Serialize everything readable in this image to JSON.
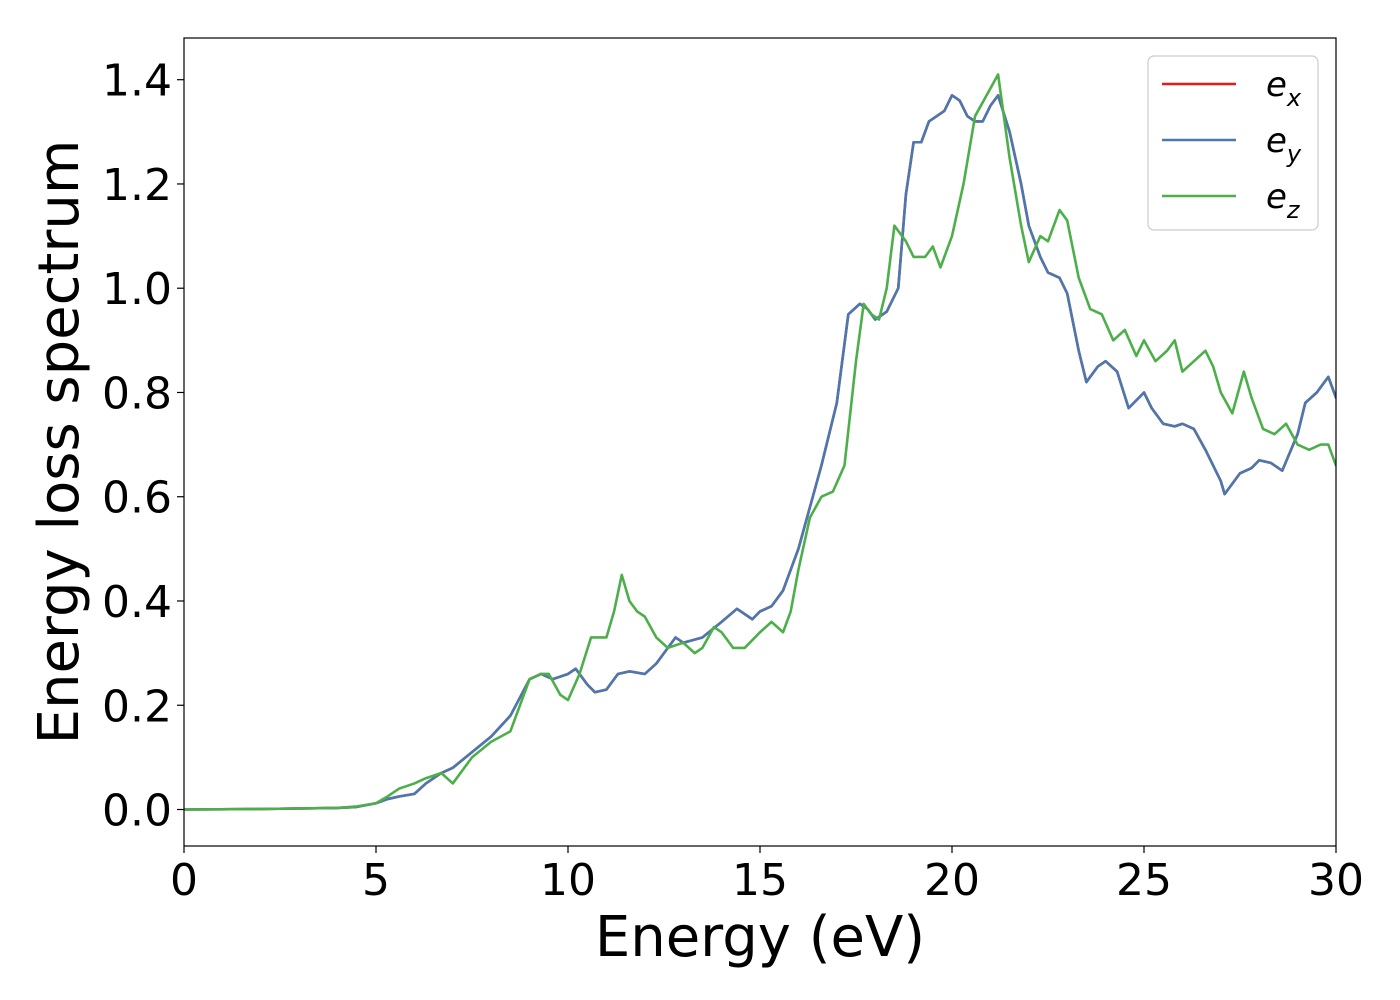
{
  "chart_data": {
    "type": "line",
    "title": "",
    "xlabel": "Energy (eV)",
    "ylabel": "Energy loss spectrum",
    "xlim": [
      0,
      30
    ],
    "ylim": [
      -0.07,
      1.48
    ],
    "xticks": [
      0,
      5,
      10,
      15,
      20,
      25,
      30
    ],
    "xtick_labels": [
      "0",
      "5",
      "10",
      "15",
      "20",
      "25",
      "30"
    ],
    "yticks": [
      0.0,
      0.2,
      0.4,
      0.6,
      0.8,
      1.0,
      1.2,
      1.4
    ],
    "ytick_labels": [
      "0.0",
      "0.2",
      "0.4",
      "0.6",
      "0.8",
      "1.0",
      "1.2",
      "1.4"
    ],
    "grid": false,
    "legend_position": "top-right",
    "series": [
      {
        "name": "e_x",
        "legend_base": "e",
        "legend_sub": "x",
        "color": "#e41a1c",
        "x": [
          0,
          2,
          4,
          4.5,
          5,
          5.3,
          5.6,
          6,
          6.3,
          6.7,
          7,
          7.5,
          8,
          8.5,
          9,
          9.3,
          9.6,
          10,
          10.2,
          10.5,
          10.7,
          11,
          11.3,
          11.6,
          12,
          12.3,
          12.5,
          12.8,
          13,
          13.5,
          14,
          14.4,
          14.8,
          15,
          15.3,
          15.6,
          16,
          16.3,
          16.6,
          17,
          17.3,
          17.6,
          17.8,
          18,
          18.3,
          18.6,
          18.8,
          19,
          19.2,
          19.4,
          19.6,
          19.8,
          20,
          20.2,
          20.4,
          20.6,
          20.8,
          21,
          21.2,
          21.5,
          21.8,
          22,
          22.3,
          22.5,
          22.8,
          23,
          23.3,
          23.5,
          23.8,
          24,
          24.3,
          24.6,
          25,
          25.2,
          25.5,
          25.8,
          26,
          26.3,
          26.6,
          27,
          27.1,
          27.5,
          27.8,
          28,
          28.3,
          28.6,
          29,
          29.2,
          29.5,
          29.8,
          30
        ],
        "y": [
          0,
          0.001,
          0.003,
          0.005,
          0.012,
          0.02,
          0.025,
          0.03,
          0.05,
          0.07,
          0.08,
          0.11,
          0.14,
          0.18,
          0.25,
          0.26,
          0.25,
          0.26,
          0.27,
          0.24,
          0.225,
          0.23,
          0.26,
          0.265,
          0.26,
          0.28,
          0.3,
          0.33,
          0.32,
          0.33,
          0.36,
          0.385,
          0.365,
          0.38,
          0.39,
          0.42,
          0.5,
          0.58,
          0.66,
          0.78,
          0.95,
          0.97,
          0.96,
          0.94,
          0.955,
          1.0,
          1.18,
          1.28,
          1.28,
          1.32,
          1.33,
          1.34,
          1.37,
          1.36,
          1.33,
          1.32,
          1.32,
          1.35,
          1.37,
          1.3,
          1.2,
          1.12,
          1.06,
          1.03,
          1.02,
          0.99,
          0.88,
          0.82,
          0.85,
          0.86,
          0.84,
          0.77,
          0.8,
          0.77,
          0.74,
          0.735,
          0.74,
          0.73,
          0.69,
          0.63,
          0.605,
          0.645,
          0.655,
          0.67,
          0.665,
          0.65,
          0.72,
          0.78,
          0.8,
          0.83,
          0.79
        ]
      },
      {
        "name": "e_y",
        "legend_base": "e",
        "legend_sub": "y",
        "color": "#4a79b0",
        "x": [
          0,
          2,
          4,
          4.5,
          5,
          5.3,
          5.6,
          6,
          6.3,
          6.7,
          7,
          7.5,
          8,
          8.5,
          9,
          9.3,
          9.6,
          10,
          10.2,
          10.5,
          10.7,
          11,
          11.3,
          11.6,
          12,
          12.3,
          12.5,
          12.8,
          13,
          13.5,
          14,
          14.4,
          14.8,
          15,
          15.3,
          15.6,
          16,
          16.3,
          16.6,
          17,
          17.3,
          17.6,
          17.8,
          18,
          18.3,
          18.6,
          18.8,
          19,
          19.2,
          19.4,
          19.6,
          19.8,
          20,
          20.2,
          20.4,
          20.6,
          20.8,
          21,
          21.2,
          21.5,
          21.8,
          22,
          22.3,
          22.5,
          22.8,
          23,
          23.3,
          23.5,
          23.8,
          24,
          24.3,
          24.6,
          25,
          25.2,
          25.5,
          25.8,
          26,
          26.3,
          26.6,
          27,
          27.1,
          27.5,
          27.8,
          28,
          28.3,
          28.6,
          29,
          29.2,
          29.5,
          29.8,
          30
        ],
        "y": [
          0,
          0.001,
          0.003,
          0.005,
          0.012,
          0.02,
          0.025,
          0.03,
          0.05,
          0.07,
          0.08,
          0.11,
          0.14,
          0.18,
          0.25,
          0.26,
          0.25,
          0.26,
          0.27,
          0.24,
          0.225,
          0.23,
          0.26,
          0.265,
          0.26,
          0.28,
          0.3,
          0.33,
          0.32,
          0.33,
          0.36,
          0.385,
          0.365,
          0.38,
          0.39,
          0.42,
          0.5,
          0.58,
          0.66,
          0.78,
          0.95,
          0.97,
          0.96,
          0.94,
          0.955,
          1.0,
          1.18,
          1.28,
          1.28,
          1.32,
          1.33,
          1.34,
          1.37,
          1.36,
          1.33,
          1.32,
          1.32,
          1.35,
          1.37,
          1.3,
          1.2,
          1.12,
          1.06,
          1.03,
          1.02,
          0.99,
          0.88,
          0.82,
          0.85,
          0.86,
          0.84,
          0.77,
          0.8,
          0.77,
          0.74,
          0.735,
          0.74,
          0.73,
          0.69,
          0.63,
          0.605,
          0.645,
          0.655,
          0.67,
          0.665,
          0.65,
          0.72,
          0.78,
          0.8,
          0.83,
          0.79
        ]
      },
      {
        "name": "e_z",
        "legend_base": "e",
        "legend_sub": "z",
        "color": "#4daf4a",
        "x": [
          0,
          2,
          4,
          4.5,
          5,
          5.3,
          5.6,
          5.8,
          6,
          6.3,
          6.7,
          7,
          7.5,
          8,
          8.5,
          9,
          9.3,
          9.5,
          9.8,
          10,
          10.3,
          10.6,
          11,
          11.2,
          11.4,
          11.6,
          11.8,
          12,
          12.3,
          12.6,
          13,
          13.3,
          13.5,
          13.8,
          14,
          14.3,
          14.6,
          15,
          15.3,
          15.6,
          15.8,
          16,
          16.3,
          16.6,
          16.9,
          17.2,
          17.5,
          17.7,
          17.9,
          18.1,
          18.3,
          18.5,
          18.8,
          19,
          19.3,
          19.5,
          19.7,
          20,
          20.3,
          20.6,
          20.9,
          21.2,
          21.5,
          21.8,
          22,
          22.3,
          22.5,
          22.8,
          23,
          23.3,
          23.6,
          23.9,
          24.2,
          24.5,
          24.8,
          25,
          25.3,
          25.6,
          25.8,
          26,
          26.3,
          26.6,
          26.8,
          27,
          27.3,
          27.6,
          27.8,
          28.1,
          28.4,
          28.7,
          29,
          29.3,
          29.6,
          29.8,
          30
        ],
        "y": [
          0,
          0.001,
          0.003,
          0.006,
          0.012,
          0.025,
          0.04,
          0.045,
          0.05,
          0.06,
          0.07,
          0.05,
          0.1,
          0.13,
          0.15,
          0.25,
          0.26,
          0.26,
          0.22,
          0.21,
          0.26,
          0.33,
          0.33,
          0.38,
          0.45,
          0.4,
          0.38,
          0.37,
          0.33,
          0.31,
          0.32,
          0.3,
          0.31,
          0.35,
          0.34,
          0.31,
          0.31,
          0.34,
          0.36,
          0.34,
          0.38,
          0.46,
          0.56,
          0.6,
          0.61,
          0.66,
          0.86,
          0.97,
          0.95,
          0.94,
          1.0,
          1.12,
          1.09,
          1.06,
          1.06,
          1.08,
          1.04,
          1.1,
          1.2,
          1.33,
          1.37,
          1.41,
          1.25,
          1.12,
          1.05,
          1.1,
          1.09,
          1.15,
          1.13,
          1.02,
          0.96,
          0.95,
          0.9,
          0.92,
          0.87,
          0.9,
          0.86,
          0.88,
          0.9,
          0.84,
          0.86,
          0.88,
          0.85,
          0.8,
          0.76,
          0.84,
          0.79,
          0.73,
          0.72,
          0.74,
          0.7,
          0.69,
          0.7,
          0.7,
          0.66
        ]
      }
    ]
  }
}
